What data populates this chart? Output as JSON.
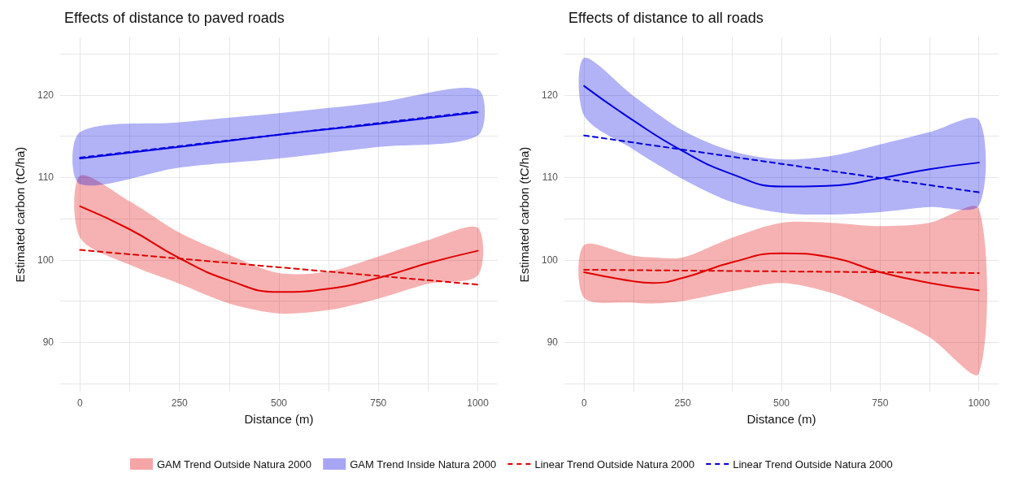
{
  "chart_data": [
    {
      "type": "line",
      "title": "Effects of distance to paved roads",
      "xlabel": "Distance (m)",
      "ylabel": "Estimated carbon (tC/ha)",
      "xlim": [
        -50,
        1050
      ],
      "ylim": [
        84,
        127
      ],
      "xticks": [
        0,
        {
          "value": 125,
          "label": null
        },
        250,
        {
          "value": 375,
          "label": null
        },
        500,
        {
          "value": 625,
          "label": null
        },
        750,
        {
          "value": 875,
          "label": null
        },
        1000
      ],
      "yticks": [
        {
          "value": 85,
          "label": null
        },
        90,
        {
          "value": 95,
          "label": null
        },
        100,
        {
          "value": 105,
          "label": null
        },
        110,
        {
          "value": 115,
          "label": null
        },
        120,
        {
          "value": 125,
          "label": null
        }
      ],
      "grid": true,
      "legend": "bottom",
      "marker": "none",
      "series": [
        {
          "name": "GAM Trend Outside Natura 2000",
          "color": "#e00000",
          "line_style": "solid",
          "x": [
            0,
            125,
            250,
            375,
            500,
            625,
            750,
            875,
            1000
          ],
          "values": [
            106.5,
            103.7,
            100.2,
            97.5,
            96.1,
            96.5,
            97.8,
            99.6,
            101.1
          ],
          "lower": [
            102.7,
            99.4,
            97.1,
            94.7,
            93.5,
            93.9,
            95.3,
            97.1,
            98.1
          ],
          "upper": [
            110.2,
            107.1,
            103.3,
            100.6,
            98.4,
            98.6,
            100.4,
            102.4,
            103.9
          ]
        },
        {
          "name": "GAM Trend Inside Natura 2000",
          "color": "#0000e0",
          "line_style": "solid",
          "x": [
            0,
            250,
            500,
            750,
            1000
          ],
          "values": [
            112.3,
            113.7,
            115.2,
            116.5,
            117.9
          ],
          "lower": [
            109.2,
            111.2,
            112.3,
            113.7,
            115.1
          ],
          "upper": [
            115.5,
            116.7,
            117.8,
            119.1,
            120.7
          ]
        },
        {
          "name": "Linear Trend Outside Natura 2000",
          "color": "#e00000",
          "line_style": "dashed",
          "x": [
            0,
            1000
          ],
          "values": [
            101.2,
            97.0
          ]
        },
        {
          "name": "Linear Trend Outside Natura 2000",
          "color": "#0000e0",
          "line_style": "dashed",
          "x": [
            0,
            1000
          ],
          "values": [
            112.4,
            118.0
          ]
        }
      ]
    },
    {
      "type": "line",
      "title": "Effects of distance to all roads",
      "xlabel": "Distance (m)",
      "ylabel": "Estimated carbon (tC/ha)",
      "xlim": [
        -50,
        1050
      ],
      "ylim": [
        84,
        127
      ],
      "xticks": [
        0,
        {
          "value": 125,
          "label": null
        },
        250,
        {
          "value": 375,
          "label": null
        },
        500,
        {
          "value": 625,
          "label": null
        },
        750,
        {
          "value": 875,
          "label": null
        },
        1000
      ],
      "yticks": [
        {
          "value": 85,
          "label": null
        },
        90,
        {
          "value": 95,
          "label": null
        },
        100,
        {
          "value": 105,
          "label": null
        },
        110,
        {
          "value": 115,
          "label": null
        },
        120,
        {
          "value": 125,
          "label": null
        }
      ],
      "grid": true,
      "marker": "none",
      "series": [
        {
          "color": "#e00000",
          "line_style": "solid",
          "x": [
            0,
            125,
            175,
            250,
            375,
            500,
            625,
            750,
            875,
            1000
          ],
          "values": [
            98.5,
            97.4,
            97.2,
            97.8,
            99.7,
            100.8,
            100.3,
            98.5,
            97.2,
            96.3
          ],
          "lower": [
            95.4,
            94.8,
            94.7,
            95.0,
            96.2,
            97.2,
            96.0,
            93.6,
            90.6,
            86.2
          ],
          "upper": [
            101.8,
            100.5,
            100.3,
            100.3,
            102.7,
            104.5,
            104.5,
            104.1,
            104.5,
            106.2
          ]
        },
        {
          "color": "#0000e0",
          "line_style": "solid",
          "x": [
            0,
            125,
            250,
            375,
            500,
            625,
            750,
            875,
            1000
          ],
          "values": [
            121.1,
            116.9,
            113.2,
            110.4,
            108.9,
            109.0,
            109.9,
            111.0,
            111.8
          ],
          "lower": [
            117.5,
            113.4,
            109.8,
            107.0,
            105.7,
            105.5,
            105.8,
            106.4,
            106.6
          ],
          "upper": [
            124.5,
            119.9,
            115.7,
            113.2,
            112.2,
            112.6,
            114.0,
            115.5,
            117.0
          ]
        },
        {
          "color": "#e00000",
          "line_style": "dashed",
          "x": [
            0,
            1000
          ],
          "values": [
            98.8,
            98.4
          ]
        },
        {
          "color": "#0000e0",
          "line_style": "dashed",
          "x": [
            0,
            1000
          ],
          "values": [
            115.1,
            108.2
          ]
        }
      ]
    }
  ]
}
